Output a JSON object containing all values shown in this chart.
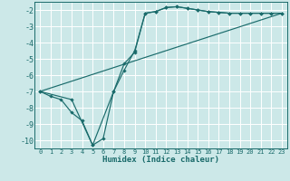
{
  "xlabel": "Humidex (Indice chaleur)",
  "background_color": "#cce8e8",
  "grid_color": "#ffffff",
  "line_color": "#1a6b6b",
  "xlim": [
    -0.5,
    23.5
  ],
  "ylim": [
    -10.5,
    -1.5
  ],
  "yticks": [
    -10,
    -9,
    -8,
    -7,
    -6,
    -5,
    -4,
    -3,
    -2
  ],
  "xticks": [
    0,
    1,
    2,
    3,
    4,
    5,
    6,
    7,
    8,
    9,
    10,
    11,
    12,
    13,
    14,
    15,
    16,
    17,
    18,
    19,
    20,
    21,
    22,
    23
  ],
  "line1_x": [
    0,
    1,
    2,
    3,
    4,
    5,
    6,
    7,
    8,
    9,
    10,
    11,
    12,
    13,
    14,
    15,
    16,
    17,
    18,
    19,
    20,
    21,
    22,
    23
  ],
  "line1_y": [
    -7.0,
    -7.3,
    -7.5,
    -8.3,
    -8.8,
    -10.3,
    -9.9,
    -7.0,
    -5.3,
    -4.6,
    -2.2,
    -2.1,
    -1.85,
    -1.8,
    -1.9,
    -2.0,
    -2.1,
    -2.15,
    -2.2,
    -2.2,
    -2.2,
    -2.2,
    -2.2,
    -2.2
  ],
  "line2_x": [
    0,
    3,
    5,
    7,
    8,
    9,
    10,
    11,
    12,
    13,
    14,
    15,
    16,
    17,
    18,
    19,
    20,
    21,
    22,
    23
  ],
  "line2_y": [
    -7.0,
    -7.5,
    -10.3,
    -7.0,
    -5.7,
    -4.5,
    -2.2,
    -2.1,
    -1.85,
    -1.8,
    -1.9,
    -2.0,
    -2.1,
    -2.15,
    -2.2,
    -2.2,
    -2.2,
    -2.2,
    -2.2,
    -2.2
  ],
  "line3_x": [
    0,
    23
  ],
  "line3_y": [
    -7.0,
    -2.2
  ],
  "xlabel_fontsize": 6.5,
  "tick_fontsize": 5.0,
  "ytick_fontsize": 6.0
}
